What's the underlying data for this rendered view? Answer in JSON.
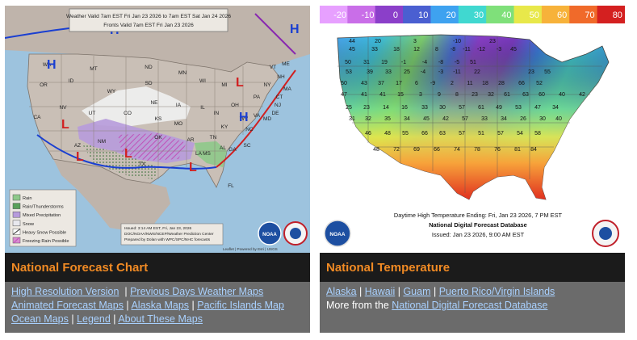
{
  "forecast": {
    "title_line1": "Weather Valid 7am EST Fri Jan 23 2026 to 7am EST Sat Jan 24 2026",
    "title_line2": "Fronts Valid 7am EST Fri Jan 23 2026",
    "legend": [
      "Rain",
      "Rain/Thunderstorms",
      "Mixed Precipitation",
      "Snow",
      "Heavy Snow Possible",
      "Freezing Rain Possible"
    ],
    "legend_colors": [
      "#8ec98a",
      "#5aa05a",
      "#b79bdc",
      "#e8e8ee",
      "#ffffff",
      "#d98ad0"
    ],
    "issued_line1": "Issued: 3:14 AM EST, Fri, Jan 23, 2026",
    "issued_line2": "DOC/NOAA/NWS/NCEP/Weather Prediction Center",
    "issued_line3": "Prepared by Dolan with WPC/SPC/NHC forecasts",
    "credit": "Leaflet | Powered by Esri | USGS",
    "states": [
      "WA",
      "OR",
      "ID",
      "MT",
      "WY",
      "NV",
      "UT",
      "CO",
      "AZ",
      "NM",
      "ND",
      "SD",
      "NE",
      "KS",
      "OK",
      "TX",
      "MN",
      "IA",
      "MO",
      "AR",
      "LA",
      "WI",
      "IL",
      "MI",
      "IN",
      "OH",
      "KY",
      "TN",
      "MS",
      "AL",
      "GA",
      "FL",
      "SC",
      "NC",
      "VA",
      "WV",
      "PA",
      "NY",
      "VT",
      "ME",
      "NH",
      "MA",
      "CT",
      "NJ",
      "DE",
      "MD",
      "CA"
    ],
    "pressure_high": "H",
    "pressure_low": "L",
    "panel_title": "National Forecast Chart",
    "links_row1": [
      "High Resolution Version",
      "Previous Days Weather Maps"
    ],
    "links_row2": [
      "Animated Forecast Maps",
      "Alaska Maps",
      "Pacific Islands Map"
    ],
    "links_row3": [
      "Ocean Maps",
      "Legend",
      "About These Maps"
    ]
  },
  "temperature": {
    "scale": [
      "-20",
      "-10",
      "0",
      "10",
      "20",
      "30",
      "40",
      "50",
      "60",
      "70",
      "80"
    ],
    "scale_colors": [
      "#e7a0ff",
      "#c96ee8",
      "#8b3fc9",
      "#4a5fd1",
      "#3ea2f0",
      "#40d8d0",
      "#7fe07a",
      "#e8e84a",
      "#f7b23a",
      "#f06a2a",
      "#d42020"
    ],
    "values": [
      "44",
      "20",
      "3",
      "-10",
      "23",
      "45",
      "33",
      "18",
      "12",
      "8",
      "-8",
      "-11",
      "-12",
      "-3",
      "45",
      "50",
      "31",
      "19",
      "-1",
      "-4",
      "-8",
      "-5",
      "51",
      "53",
      "39",
      "33",
      "25",
      "-4",
      "-3",
      "-11",
      "22",
      "23",
      "55",
      "50",
      "43",
      "37",
      "17",
      "6",
      "-9",
      "2",
      "11",
      "18",
      "28",
      "66",
      "52",
      "47",
      "41",
      "41",
      "15",
      "3",
      "9",
      "8",
      "23",
      "32",
      "61",
      "63",
      "60",
      "40",
      "42",
      "25",
      "23",
      "14",
      "16",
      "33",
      "30",
      "57",
      "61",
      "49",
      "53",
      "47",
      "34",
      "31",
      "32",
      "35",
      "34",
      "45",
      "42",
      "57",
      "33",
      "34",
      "26",
      "30",
      "40",
      "46",
      "48",
      "55",
      "66",
      "63",
      "57",
      "51",
      "57",
      "54",
      "58",
      "48",
      "72",
      "69",
      "66",
      "74",
      "78",
      "76",
      "81",
      "84"
    ],
    "caption_line1": "Daytime High Temperature Ending: Fri, Jan 23 2026, 7 PM EST",
    "caption_line2": "National Digital Forecast Database",
    "caption_line3": "Issued: Jan 23 2026, 9:00 AM EST",
    "panel_title": "National Temperature",
    "links_row1": [
      "Alaska",
      "Hawaii",
      "Guam",
      "Puerto Rico/Virgin Islands"
    ],
    "more_prefix": "More from the ",
    "more_link": "National Digital Forecast Database"
  },
  "logos": {
    "noaa": "NOAA",
    "nws": "NATIONAL WEATHER SERVICE"
  }
}
